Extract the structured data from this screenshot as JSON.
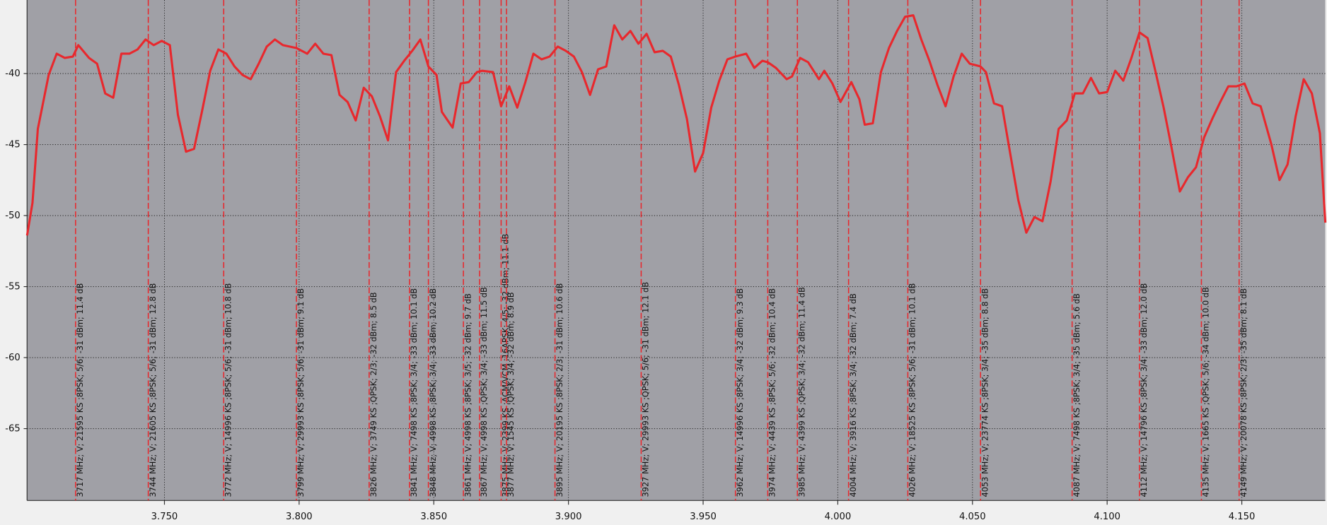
{
  "chart_data": {
    "type": "line",
    "xlim": [
      3.699,
      4.181
    ],
    "ylim": [
      -70.06,
      -34.82
    ],
    "xticks": [
      {
        "value": 3.75,
        "label": "3.750"
      },
      {
        "value": 3.8,
        "label": "3.800"
      },
      {
        "value": 3.85,
        "label": "3.850"
      },
      {
        "value": 3.9,
        "label": "3.900"
      },
      {
        "value": 3.95,
        "label": "3.950"
      },
      {
        "value": 4.0,
        "label": "4.000"
      },
      {
        "value": 4.05,
        "label": "4.050"
      },
      {
        "value": 4.1,
        "label": "4.100"
      },
      {
        "value": 4.15,
        "label": "4.150"
      }
    ],
    "yticks": [
      -40,
      -45,
      -50,
      -55,
      -60,
      -65
    ],
    "grid": true,
    "series": [
      {
        "color": "#e8282d",
        "x": [
          3.699,
          3.701,
          3.703,
          3.707,
          3.71,
          3.713,
          3.716,
          3.718,
          3.722,
          3.725,
          3.728,
          3.731,
          3.734,
          3.737,
          3.74,
          3.743,
          3.746,
          3.749,
          3.752,
          3.755,
          3.758,
          3.761,
          3.764,
          3.767,
          3.77,
          3.773,
          3.776,
          3.779,
          3.782,
          3.785,
          3.788,
          3.791,
          3.794,
          3.799,
          3.803,
          3.806,
          3.809,
          3.812,
          3.815,
          3.818,
          3.821,
          3.824,
          3.827,
          3.83,
          3.833,
          3.836,
          3.839,
          3.842,
          3.845,
          3.848,
          3.851,
          3.853,
          3.857,
          3.86,
          3.863,
          3.866,
          3.868,
          3.872,
          3.875,
          3.878,
          3.881,
          3.884,
          3.887,
          3.89,
          3.893,
          3.896,
          3.899,
          3.902,
          3.905,
          3.908,
          3.911,
          3.914,
          3.917,
          3.92,
          3.923,
          3.926,
          3.929,
          3.932,
          3.935,
          3.938,
          3.941,
          3.944,
          3.947,
          3.95,
          3.953,
          3.956,
          3.959,
          3.962,
          3.966,
          3.969,
          3.972,
          3.974,
          3.977,
          3.981,
          3.983,
          3.986,
          3.989,
          3.993,
          3.995,
          3.998,
          4.001,
          4.005,
          4.008,
          4.01,
          4.013,
          4.016,
          4.019,
          4.022,
          4.025,
          4.028,
          4.031,
          4.034,
          4.037,
          4.04,
          4.043,
          4.046,
          4.049,
          4.053,
          4.055,
          4.058,
          4.061,
          4.064,
          4.067,
          4.07,
          4.073,
          4.076,
          4.079,
          4.082,
          4.085,
          4.088,
          4.091,
          4.094,
          4.097,
          4.1,
          4.103,
          4.106,
          4.109,
          4.112,
          4.115,
          4.118,
          4.121,
          4.124,
          4.127,
          4.13,
          4.133,
          4.136,
          4.139,
          4.142,
          4.145,
          4.148,
          4.151,
          4.154,
          4.157,
          4.161,
          4.164,
          4.167,
          4.17,
          4.173,
          4.176,
          4.179,
          4.181
        ],
        "values": [
          -51.4,
          -49.1,
          -43.9,
          -40.1,
          -38.6,
          -38.9,
          -38.8,
          -38.0,
          -38.9,
          -39.3,
          -41.4,
          -41.7,
          -38.6,
          -38.6,
          -38.3,
          -37.6,
          -38.0,
          -37.7,
          -38.0,
          -42.9,
          -45.5,
          -45.3,
          -42.6,
          -39.8,
          -38.3,
          -38.6,
          -39.5,
          -40.1,
          -40.4,
          -39.3,
          -38.1,
          -37.6,
          -38.0,
          -38.2,
          -38.6,
          -37.9,
          -38.6,
          -38.7,
          -41.5,
          -42.0,
          -43.3,
          -41.0,
          -41.6,
          -43.0,
          -44.7,
          -39.9,
          -39.1,
          -38.4,
          -37.6,
          -39.5,
          -40.1,
          -42.7,
          -43.8,
          -40.7,
          -40.6,
          -39.9,
          -39.8,
          -39.9,
          -42.3,
          -40.9,
          -42.4,
          -40.6,
          -38.6,
          -39.0,
          -38.8,
          -38.1,
          -38.4,
          -38.8,
          -39.9,
          -41.5,
          -39.7,
          -39.5,
          -36.6,
          -37.6,
          -37.0,
          -37.9,
          -37.2,
          -38.5,
          -38.4,
          -38.8,
          -40.8,
          -43.2,
          -46.9,
          -45.6,
          -42.4,
          -40.5,
          -39.0,
          -38.8,
          -38.6,
          -39.6,
          -39.1,
          -39.2,
          -39.6,
          -40.4,
          -40.2,
          -38.9,
          -39.2,
          -40.4,
          -39.8,
          -40.7,
          -42.0,
          -40.6,
          -41.8,
          -43.6,
          -43.5,
          -39.9,
          -38.2,
          -37.0,
          -36.0,
          -35.9,
          -37.6,
          -39.1,
          -40.8,
          -42.3,
          -40.2,
          -38.6,
          -39.3,
          -39.5,
          -39.9,
          -42.1,
          -42.3,
          -45.6,
          -48.9,
          -51.2,
          -50.1,
          -50.4,
          -47.6,
          -43.9,
          -43.3,
          -41.4,
          -41.4,
          -40.3,
          -41.4,
          -41.3,
          -39.8,
          -40.5,
          -38.9,
          -37.1,
          -37.5,
          -39.9,
          -42.4,
          -45.3,
          -48.3,
          -47.3,
          -46.6,
          -44.5,
          -43.2,
          -42.0,
          -40.9,
          -40.9,
          -40.7,
          -42.1,
          -42.3,
          -45.0,
          -47.5,
          -46.4,
          -43.0,
          -40.4,
          -41.4,
          -44.2,
          -50.5
        ]
      }
    ],
    "markers": {
      "color": "#e8282d",
      "x": [
        3.717,
        3.744,
        3.772,
        3.799,
        3.826,
        3.841,
        3.848,
        3.861,
        3.867,
        3.875,
        3.877,
        3.895,
        3.927,
        3.962,
        3.974,
        3.985,
        4.004,
        4.026,
        4.053,
        4.087,
        4.112,
        4.135,
        4.149
      ],
      "labels": [
        "3717 MHz; V; 21595 KS ;8PSK; 5/6; -31 dBm; 11.4 dB",
        "3744 MHz; V; 21605 KS ;8PSK; 5/6; -31 dBm; 12.8 dB",
        "3772 MHz; V; 14996 KS ;8PSK; 5/6; -31 dBm; 10.8 dB",
        "3799 MHz; V; 29993 KS ;8PSK; 5/6; -31 dBm; 9.1 dB",
        "3826 MHz; V; 3749 KS ;QPSK; 2/3; -32 dBm; 8.5 dB",
        "3841 MHz; V; 7498 KS ;8PSK; 3/4; -33 dBm; 10.1 dB",
        "3848 MHz; V; 4998 KS ;8PSK; 3/4; -33 dBm; 10.2 dB",
        "3861 MHz; V; 4998 KS ;8PSK; 3/5; -32 dBm; 9.7 dB",
        "3867 MHz; V; 4998 KS ;QPSK; 3/4; -33 dBm; 11.5 dB",
        "3875 MHz; V; 2399 KS ;ACM/VCM ;16APSK; 4/5; -32 dBm; 11.1 dB",
        "3877 MHz; V; 1545 KS ;QPSK; 3/4; -32 dBm; 8.9 dB",
        "3895 MHz; V; 20195 KS ;8PSK; 2/3; -31 dBm; 10.6 dB",
        "3927 MHz; V; 29993 KS ;QPSK; 5/6; -31 dBm; 12.1 dB",
        "3962 MHz; V; 14996 KS ;8PSK; 3/4; -32 dBm; 9.3 dB",
        "3974 MHz; V; 4439 KS ;8PSK; 5/6; -32 dBm; 10.4 dB",
        "3985 MHz; V; 4399 KS ;QPSK; 3/4; -32 dBm; 11.4 dB",
        "4004 MHz; V; 3916 KS ;8PSK; 3/4; -32 dBm; 7.4 dB",
        "4026 MHz; V; 18525 KS ;8PSK; 5/6; -31 dBm; 10.1 dB",
        "4053 MHz; V; 23774 KS ;8PSK; 3/4; -35 dBm; 8.8 dB",
        "4087 MHz; V; 7498 KS ;8PSK; 3/4; -35 dBm; 5.6 dB",
        "4112 MHz; V; 14796 KS ;8PSK; 3/4; -33 dBm; 12.0 dB",
        "4135 MHz; V; 1665 KS ;QPSK; 5/6; -34 dBm; 10.0 dB",
        "4149 MHz; V; 20078 KS ;8PSK; 2/3; -35 dBm; 8.1 dB"
      ]
    }
  }
}
